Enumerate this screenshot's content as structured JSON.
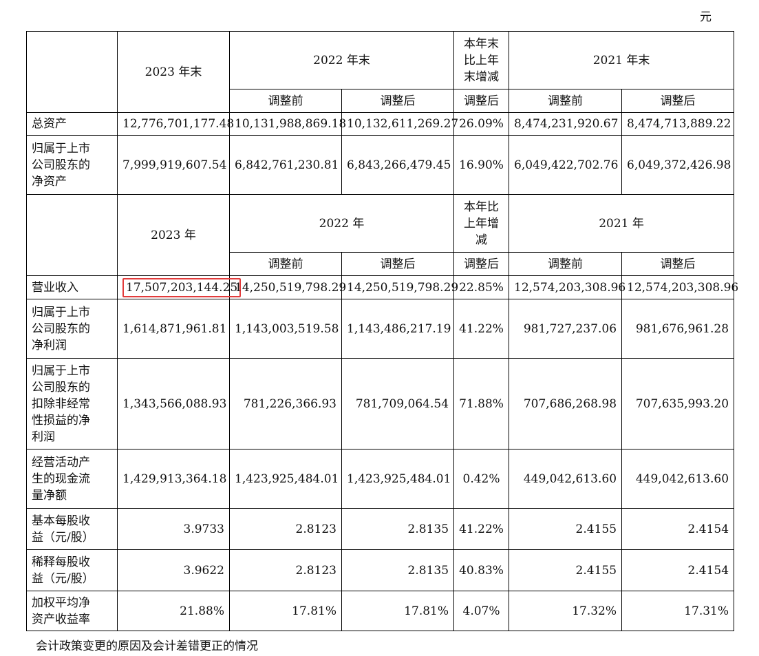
{
  "unit": "元",
  "header1": {
    "y2023": "2023 年末",
    "y2022": "2022 年末",
    "change": [
      "本年末",
      "比上年",
      "末增减"
    ],
    "y2021": "2021 年末"
  },
  "header2": {
    "y2023": "2023 年",
    "y2022": "2022 年",
    "change": [
      "本年比",
      "上年增",
      "减"
    ],
    "y2021": "2021 年"
  },
  "sub": {
    "before": "调整前",
    "after": "调整后"
  },
  "rows_a": [
    {
      "label": [
        "总资产"
      ],
      "v2023": "12,776,701,177.48",
      "v2022b": "10,131,988,869.18",
      "v2022a": "10,132,611,269.27",
      "chg": "26.09%",
      "v2021b": "8,474,231,920.67",
      "v2021a": "8,474,713,889.22"
    },
    {
      "label": [
        "归属于上市",
        "公司股东的",
        "净资产"
      ],
      "v2023": "7,999,919,607.54",
      "v2022b": "6,842,761,230.81",
      "v2022a": "6,843,266,479.45",
      "chg": "16.90%",
      "v2021b": "6,049,422,702.76",
      "v2021a": "6,049,372,426.98"
    }
  ],
  "rows_b": [
    {
      "label": [
        "营业收入"
      ],
      "v2023": "17,507,203,144.25",
      "v2022b": "14,250,519,798.29",
      "v2022a": "14,250,519,798.29",
      "chg": "22.85%",
      "v2021b": "12,574,203,308.96",
      "v2021a": "12,574,203,308.96"
    },
    {
      "label": [
        "归属于上市",
        "公司股东的",
        "净利润"
      ],
      "v2023": "1,614,871,961.81",
      "v2022b": "1,143,003,519.58",
      "v2022a": "1,143,486,217.19",
      "chg": "41.22%",
      "v2021b": "981,727,237.06",
      "v2021a": "981,676,961.28"
    },
    {
      "label": [
        "归属于上市",
        "公司股东的",
        "扣除非经常",
        "性损益的净",
        "利润"
      ],
      "v2023": "1,343,566,088.93",
      "v2022b": "781,226,366.93",
      "v2022a": "781,709,064.54",
      "chg": "71.88%",
      "v2021b": "707,686,268.98",
      "v2021a": "707,635,993.20"
    },
    {
      "label": [
        "经营活动产",
        "生的现金流",
        "量净额"
      ],
      "v2023": "1,429,913,364.18",
      "v2022b": "1,423,925,484.01",
      "v2022a": "1,423,925,484.01",
      "chg": "0.42%",
      "v2021b": "449,042,613.60",
      "v2021a": "449,042,613.60"
    },
    {
      "label": [
        "基本每股收",
        "益（元/股）"
      ],
      "v2023": "3.9733",
      "v2022b": "2.8123",
      "v2022a": "2.8135",
      "chg": "41.22%",
      "v2021b": "2.4155",
      "v2021a": "2.4154"
    },
    {
      "label": [
        "稀释每股收",
        "益（元/股）"
      ],
      "v2023": "3.9622",
      "v2022b": "2.8123",
      "v2022a": "2.8135",
      "chg": "40.83%",
      "v2021b": "2.4155",
      "v2021a": "2.4154"
    },
    {
      "label": [
        "加权平均净",
        "资产收益率"
      ],
      "v2023": "21.88%",
      "v2022b": "17.81%",
      "v2022a": "17.81%",
      "chg": "4.07%",
      "v2021b": "17.32%",
      "v2021a": "17.31%"
    }
  ],
  "footer": "会计政策变更的原因及会计差错更正的情况"
}
